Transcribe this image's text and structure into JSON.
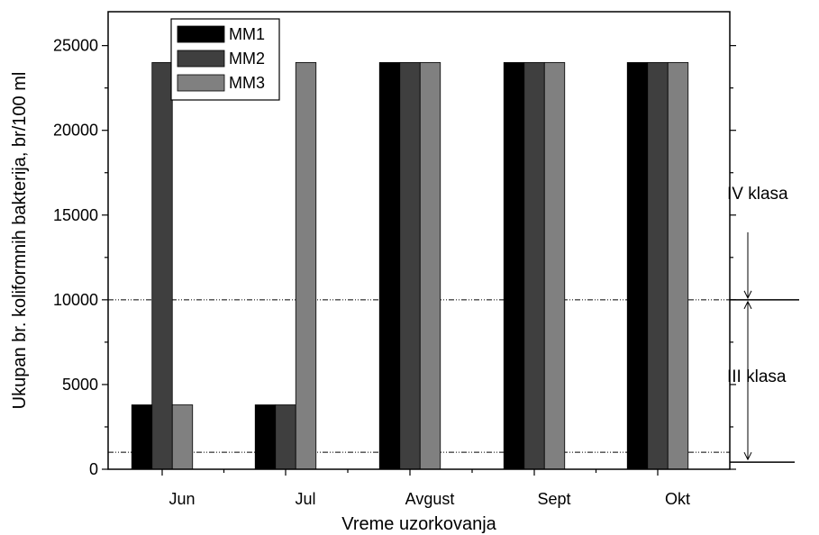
{
  "chart_data": {
    "type": "bar",
    "title": "",
    "xlabel": "Vreme uzorkovanja",
    "ylabel": "Ukupan br. koliformnih bakterija, br/100 ml",
    "categories": [
      "Jun",
      "Jul",
      "Avgust",
      "Sept",
      "Okt"
    ],
    "ylim": [
      0,
      27000
    ],
    "yticks": [
      0,
      5000,
      10000,
      15000,
      20000,
      25000
    ],
    "series": [
      {
        "name": "MM1",
        "color": "#000000",
        "values": [
          3800,
          3800,
          24000,
          24000,
          24000
        ]
      },
      {
        "name": "MM2",
        "color": "#3f3f3f",
        "values": [
          24000,
          3800,
          24000,
          24000,
          24000
        ]
      },
      {
        "name": "MM3",
        "color": "#808080",
        "values": [
          3800,
          24000,
          24000,
          24000,
          24000
        ]
      }
    ],
    "legend_position": "top-left",
    "grid": false,
    "reference_lines": [
      {
        "y": 10000,
        "style": "dash-dot"
      },
      {
        "y": 1000,
        "style": "dash-dot"
      }
    ],
    "annotations": [
      {
        "text": "IV klasa",
        "range": [
          10000,
          27000
        ]
      },
      {
        "text": "III klasa",
        "range": [
          1000,
          10000
        ]
      }
    ]
  }
}
